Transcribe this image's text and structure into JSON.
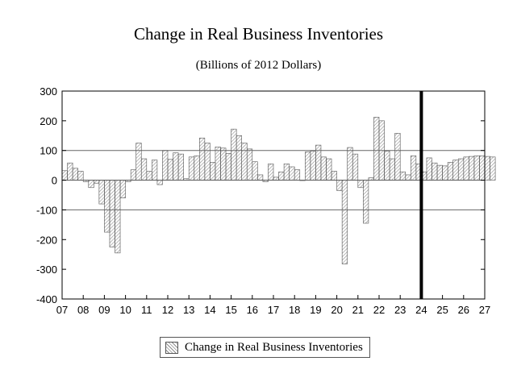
{
  "chart_data": {
    "type": "bar",
    "title": "Change in Real Business Inventories",
    "subtitle": "(Billions of 2012 Dollars)",
    "xlabel": "",
    "ylabel": "",
    "ylim": [
      -400,
      300
    ],
    "yticks": [
      300,
      200,
      100,
      0,
      -100,
      -200,
      -300,
      -400
    ],
    "grid_values": [
      100,
      0,
      -100
    ],
    "x_tick_labels": [
      "07",
      "08",
      "09",
      "10",
      "11",
      "12",
      "13",
      "14",
      "15",
      "16",
      "17",
      "18",
      "19",
      "20",
      "21",
      "22",
      "23",
      "24",
      "25",
      "26",
      "27"
    ],
    "start_year": 2007,
    "forecast_start": "2024Q1",
    "legend": "Change in Real Business Inventories",
    "legend_position": "bottom-center",
    "bar_color": "#8c8c8c",
    "series": [
      {
        "name": "Change in Real Business Inventories",
        "values": [
          32,
          58,
          40,
          30,
          -5,
          -25,
          -10,
          -80,
          -175,
          -225,
          -245,
          -60,
          -5,
          35,
          125,
          72,
          30,
          68,
          -15,
          100,
          70,
          92,
          88,
          5,
          78,
          82,
          142,
          125,
          60,
          112,
          108,
          90,
          172,
          150,
          125,
          105,
          62,
          18,
          -5,
          55,
          10,
          28,
          55,
          45,
          35,
          0,
          95,
          98,
          118,
          78,
          72,
          30,
          -35,
          -282,
          110,
          88,
          -25,
          -145,
          8,
          212,
          200,
          98,
          72,
          158,
          28,
          18,
          82,
          55,
          28,
          75,
          58,
          50,
          48,
          60,
          68,
          72,
          78,
          80,
          82,
          82,
          80,
          78
        ]
      }
    ]
  }
}
